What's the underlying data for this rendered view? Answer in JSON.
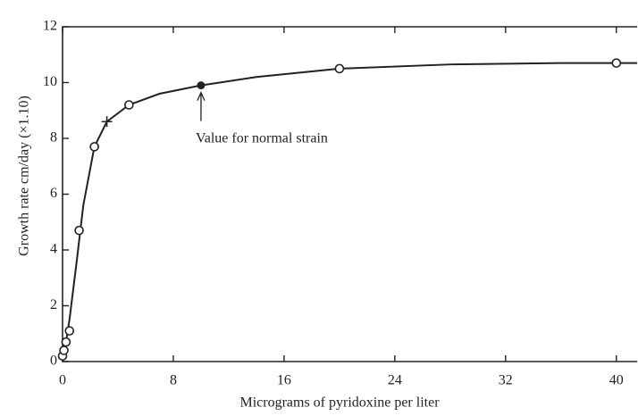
{
  "chart_data": {
    "type": "scatter",
    "x_label": "Micrograms of pyridoxine per liter",
    "y_label": "Growth rate cm/day (×1.10)",
    "annotation": "Value for normal strain",
    "xlim": [
      0,
      41.5
    ],
    "ylim": [
      0,
      12
    ],
    "xticks": [
      0,
      8,
      16,
      24,
      32,
      40
    ],
    "yticks": [
      0,
      2,
      4,
      6,
      8,
      10,
      12
    ],
    "grid": false,
    "color": "#222222",
    "series": [
      {
        "marker": "circle",
        "color": "#222222",
        "x": [
          0,
          0.1,
          0.25,
          0.5,
          1.2,
          2.3,
          4.8,
          20,
          40
        ],
        "values": [
          0.2,
          0.4,
          0.7,
          1.1,
          4.7,
          7.7,
          9.2,
          10.5,
          10.7
        ]
      },
      {
        "marker": "filled",
        "color": "#222222",
        "x": [
          10
        ],
        "values": [
          9.9
        ]
      },
      {
        "marker": "plus",
        "color": "#222222",
        "x": [
          3.2
        ],
        "values": [
          8.6
        ]
      },
      {
        "marker": "line",
        "color": "#222222",
        "x": [
          0,
          0.25,
          0.5,
          1,
          1.5,
          2.3,
          3.2,
          4.8,
          7,
          10,
          14,
          20,
          28,
          36,
          41.5
        ],
        "values": [
          0,
          0.7,
          1.5,
          3.5,
          5.6,
          7.7,
          8.6,
          9.2,
          9.6,
          9.9,
          10.2,
          10.5,
          10.65,
          10.7,
          10.7
        ]
      }
    ]
  }
}
